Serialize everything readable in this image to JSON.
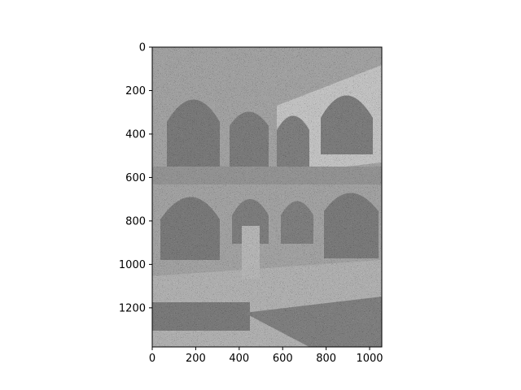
{
  "chart_data": {
    "type": "heatmap",
    "title": "",
    "xlabel": "",
    "ylabel": "",
    "colormap": "gray",
    "xlim": [
      0,
      1056
    ],
    "ylim": [
      1380,
      0
    ],
    "x_ticks": [
      0,
      200,
      400,
      600,
      800,
      1000
    ],
    "y_ticks": [
      0,
      200,
      400,
      600,
      800,
      1000,
      1200
    ],
    "grid": false,
    "legend": "none",
    "image_content": "noisy grayscale photograph of a two-storey arched courtyard with a pool"
  }
}
